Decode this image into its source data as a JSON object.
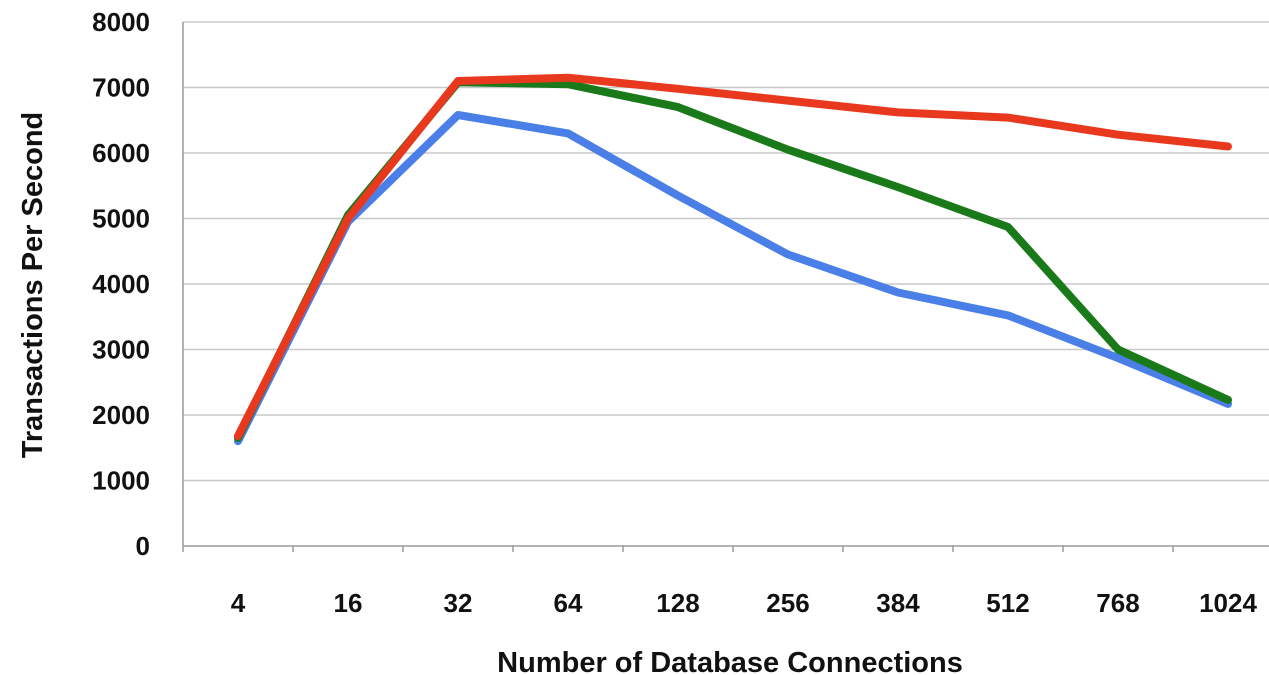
{
  "chart_data": {
    "type": "line",
    "title": "",
    "xlabel": "Number of Database Connections",
    "ylabel": "Transactions Per Second",
    "categories": [
      "4",
      "16",
      "32",
      "64",
      "128",
      "256",
      "384",
      "512",
      "768",
      "1024"
    ],
    "ylim": [
      0,
      8000
    ],
    "yticks": [
      "0",
      "1000",
      "2000",
      "3000",
      "4000",
      "5000",
      "6000",
      "7000",
      "8000"
    ],
    "grid": true,
    "legend": "none",
    "series": [
      {
        "color": "#4a7fe8",
        "values": [
          1600,
          4950,
          6580,
          6300,
          5350,
          4450,
          3870,
          3520,
          2870,
          2170
        ]
      },
      {
        "color": "#1a7a1a",
        "values": [
          1650,
          5050,
          7080,
          7050,
          6700,
          6050,
          5480,
          4870,
          3000,
          2230
        ]
      },
      {
        "color": "#e8391f",
        "values": [
          1680,
          5000,
          7100,
          7150,
          6980,
          6800,
          6620,
          6540,
          6280,
          6100
        ]
      }
    ]
  }
}
